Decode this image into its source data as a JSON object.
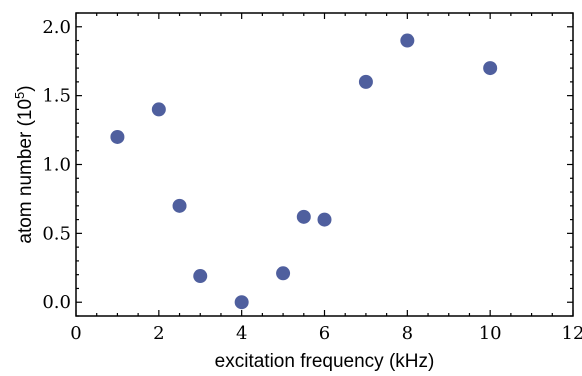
{
  "chart_data": {
    "type": "scatter",
    "title": "",
    "xlabel": "excitation frequency (kHz)",
    "ylabel": {
      "prefix": "atom number (10",
      "superscript": "5",
      "suffix": ")"
    },
    "xlim": [
      0,
      12
    ],
    "ylim": [
      -0.1,
      2.1
    ],
    "xticks": [
      0,
      2,
      4,
      6,
      8,
      10,
      12
    ],
    "yticks": [
      0.0,
      0.5,
      1.0,
      1.5,
      2.0
    ],
    "xtick_labels": [
      "0",
      "2",
      "4",
      "6",
      "8",
      "10",
      "12"
    ],
    "ytick_labels": [
      "0.0",
      "0.5",
      "1.0",
      "1.5",
      "2.0"
    ],
    "grid": false,
    "marker_color": "#4f5f9e",
    "series": [
      {
        "x": [
          1,
          2,
          2.5,
          3,
          4,
          5,
          5.5,
          6,
          7,
          8,
          10
        ],
        "y": [
          1.2,
          1.4,
          0.7,
          0.19,
          0.0,
          0.21,
          0.62,
          0.6,
          1.6,
          1.9,
          1.7
        ]
      }
    ]
  }
}
